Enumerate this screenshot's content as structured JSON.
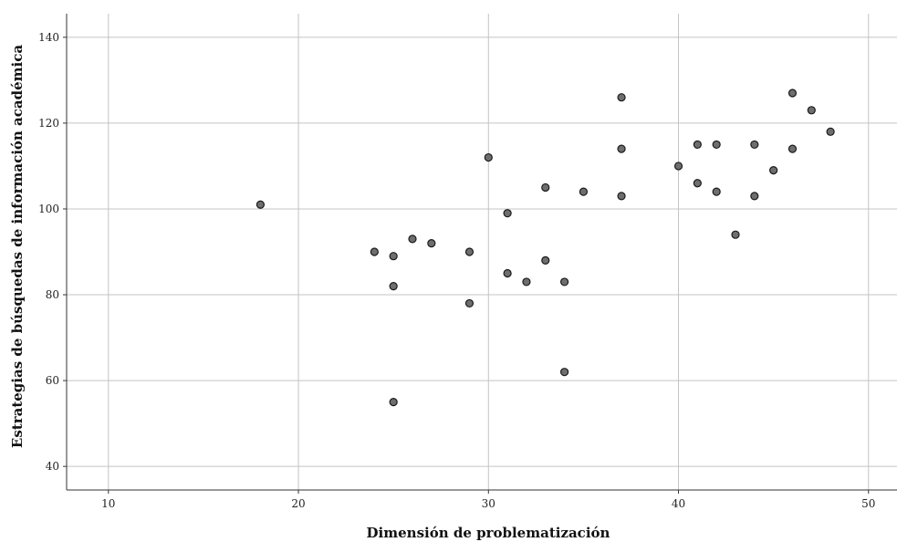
{
  "chart_data": {
    "type": "scatter",
    "title": "",
    "xlabel": "Dimensión de problematización",
    "ylabel": "Estrategias de búsquedas de información académica",
    "xlim": [
      7.8,
      51.5
    ],
    "ylim": [
      34.5,
      145.5
    ],
    "xticks": [
      10,
      20,
      30,
      40,
      50
    ],
    "yticks": [
      40,
      60,
      80,
      100,
      120,
      140
    ],
    "grid": true,
    "marker_color": "#6e6e6e",
    "marker_edge": "#1a1a1a",
    "points": [
      {
        "x": 18,
        "y": 101
      },
      {
        "x": 24,
        "y": 90
      },
      {
        "x": 25,
        "y": 89
      },
      {
        "x": 25,
        "y": 82
      },
      {
        "x": 25,
        "y": 55
      },
      {
        "x": 26,
        "y": 93
      },
      {
        "x": 27,
        "y": 92
      },
      {
        "x": 29,
        "y": 90
      },
      {
        "x": 29,
        "y": 78
      },
      {
        "x": 30,
        "y": 112
      },
      {
        "x": 31,
        "y": 99
      },
      {
        "x": 31,
        "y": 85
      },
      {
        "x": 32,
        "y": 83
      },
      {
        "x": 33,
        "y": 105
      },
      {
        "x": 33,
        "y": 88
      },
      {
        "x": 34,
        "y": 83
      },
      {
        "x": 34,
        "y": 62
      },
      {
        "x": 35,
        "y": 104
      },
      {
        "x": 37,
        "y": 126
      },
      {
        "x": 37,
        "y": 114
      },
      {
        "x": 37,
        "y": 103
      },
      {
        "x": 40,
        "y": 110
      },
      {
        "x": 41,
        "y": 115
      },
      {
        "x": 41,
        "y": 106
      },
      {
        "x": 42,
        "y": 115
      },
      {
        "x": 42,
        "y": 104
      },
      {
        "x": 43,
        "y": 94
      },
      {
        "x": 44,
        "y": 115
      },
      {
        "x": 44,
        "y": 103
      },
      {
        "x": 45,
        "y": 109
      },
      {
        "x": 46,
        "y": 127
      },
      {
        "x": 46,
        "y": 114
      },
      {
        "x": 47,
        "y": 123
      },
      {
        "x": 48,
        "y": 118
      }
    ]
  }
}
